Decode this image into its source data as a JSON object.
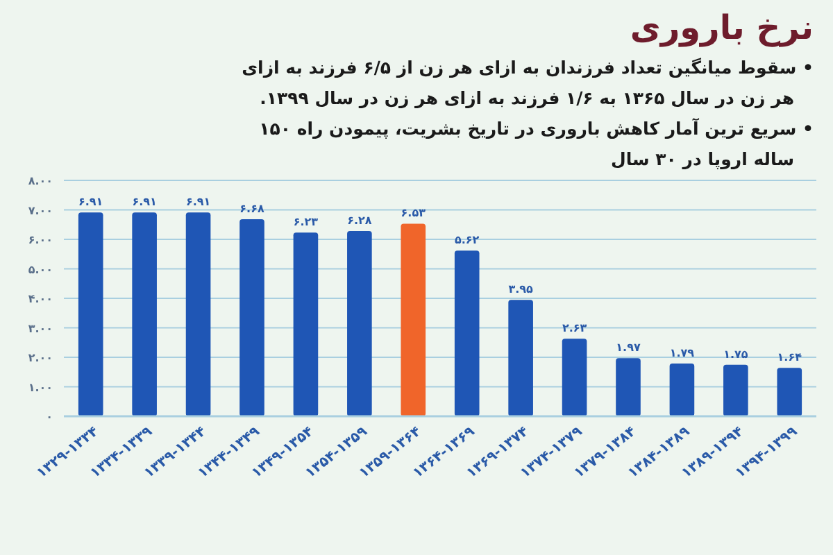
{
  "chart_data": {
    "type": "bar",
    "title": "نرخ باروری",
    "annotations": [
      "• سقوط میانگین تعداد فرزندان به ازای هر زن از ۶/۵ فرزند به ازای هر زن در سال ۱۳۶۵ به ۱/۶ فرزند به ازای هر زن در سال ۱۳۹۹.",
      "• سریع ترین آمار کاهش باروری در تاریخ بشریت، پیمودن راه ۱۵۰ ساله اروپا در ۳۰ سال"
    ],
    "categories": [
      "۱۳۲۹-۱۳۳۴",
      "۱۳۳۴-۱۳۳۹",
      "۱۳۳۹-۱۳۴۴",
      "۱۳۴۴-۱۳۴۹",
      "۱۳۴۹-۱۳۵۴",
      "۱۳۵۴-۱۳۵۹",
      "۱۳۵۹-۱۳۶۴",
      "۱۳۶۴-۱۳۶۹",
      "۱۳۶۹-۱۳۷۴",
      "۱۳۷۴-۱۳۷۹",
      "۱۳۷۹-۱۳۸۴",
      "۱۳۸۴-۱۳۸۹",
      "۱۳۸۹-۱۳۹۴",
      "۱۳۹۴-۱۳۹۹"
    ],
    "values": [
      6.91,
      6.91,
      6.91,
      6.68,
      6.23,
      6.28,
      6.53,
      5.62,
      3.95,
      2.63,
      1.97,
      1.79,
      1.75,
      1.64
    ],
    "value_labels": [
      "۶.۹۱",
      "۶.۹۱",
      "۶.۹۱",
      "۶.۶۸",
      "۶.۲۳",
      "۶.۲۸",
      "۶.۵۳",
      "۵.۶۲",
      "۳.۹۵",
      "۲.۶۳",
      "۱.۹۷",
      "۱.۷۹",
      "۱.۷۵",
      "۱.۶۴"
    ],
    "colors": [
      "#1f56b5",
      "#1f56b5",
      "#1f56b5",
      "#1f56b5",
      "#1f56b5",
      "#1f56b5",
      "#f0652a",
      "#1f56b5",
      "#1f56b5",
      "#1f56b5",
      "#1f56b5",
      "#1f56b5",
      "#1f56b5",
      "#1f56b5"
    ],
    "ylim": [
      0,
      8
    ],
    "yticks": [
      {
        "value": 0,
        "label": "۰"
      },
      {
        "value": 1,
        "label": "۱.۰۰"
      },
      {
        "value": 2,
        "label": "۲.۰۰"
      },
      {
        "value": 3,
        "label": "۳.۰۰"
      },
      {
        "value": 4,
        "label": "۴.۰۰"
      },
      {
        "value": 5,
        "label": "۵.۰۰"
      },
      {
        "value": 6,
        "label": "۶.۰۰"
      },
      {
        "value": 7,
        "label": "۷.۰۰"
      },
      {
        "value": 8,
        "label": "۸.۰۰"
      }
    ],
    "grid": "y"
  }
}
